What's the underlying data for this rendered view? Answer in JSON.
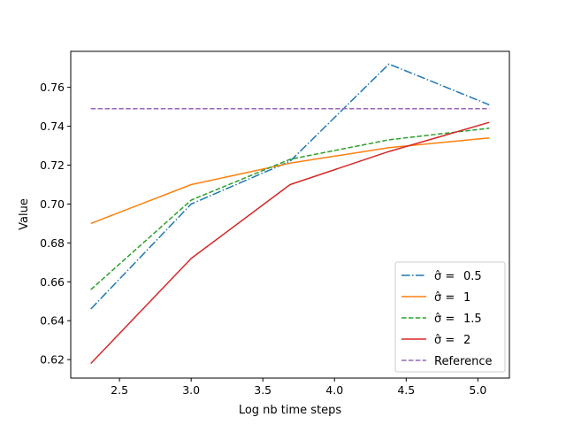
{
  "chart_data": {
    "type": "line",
    "title": "",
    "xlabel": "Log nb time  steps",
    "ylabel": "Value",
    "xlim": [
      2.16,
      5.22
    ],
    "ylim": [
      0.6105,
      0.7785
    ],
    "xticks": [
      {
        "value": 2.5,
        "label": "2.5"
      },
      {
        "value": 3.0,
        "label": "3.0"
      },
      {
        "value": 3.5,
        "label": "3.5"
      },
      {
        "value": 4.0,
        "label": "4.0"
      },
      {
        "value": 4.5,
        "label": "4.5"
      },
      {
        "value": 5.0,
        "label": "5.0"
      }
    ],
    "yticks": [
      {
        "value": 0.62,
        "label": "0.62"
      },
      {
        "value": 0.64,
        "label": "0.64"
      },
      {
        "value": 0.66,
        "label": "0.66"
      },
      {
        "value": 0.68,
        "label": "0.68"
      },
      {
        "value": 0.7,
        "label": "0.70"
      },
      {
        "value": 0.72,
        "label": "0.72"
      },
      {
        "value": 0.74,
        "label": "0.74"
      },
      {
        "value": 0.76,
        "label": "0.76"
      }
    ],
    "x": [
      2.3,
      3.0,
      3.69,
      4.38,
      5.08
    ],
    "grid": false,
    "legend_position": "lower-right",
    "series": [
      {
        "name_prefix": "σ̂ =",
        "name_value": "0.5",
        "color": "#1f77b4",
        "style": "dashdot",
        "values": [
          0.646,
          0.7,
          0.722,
          0.772,
          0.751
        ]
      },
      {
        "name_prefix": "σ̂ =",
        "name_value": "1",
        "color": "#ff7f0e",
        "style": "solid",
        "values": [
          0.69,
          0.71,
          0.721,
          0.729,
          0.734
        ]
      },
      {
        "name_prefix": "σ̂ =",
        "name_value": "1.5",
        "color": "#2ca02c",
        "style": "dashed",
        "values": [
          0.656,
          0.702,
          0.723,
          0.733,
          0.739
        ]
      },
      {
        "name_prefix": "σ̂ =",
        "name_value": "2",
        "color": "#d62728",
        "style": "solid",
        "values": [
          0.618,
          0.672,
          0.71,
          0.727,
          0.742
        ]
      },
      {
        "name_prefix": "",
        "name_value": "Reference",
        "color": "#9467bd",
        "style": "dashed",
        "x": [
          2.3,
          5.08
        ],
        "values": [
          0.749,
          0.749
        ]
      }
    ]
  }
}
